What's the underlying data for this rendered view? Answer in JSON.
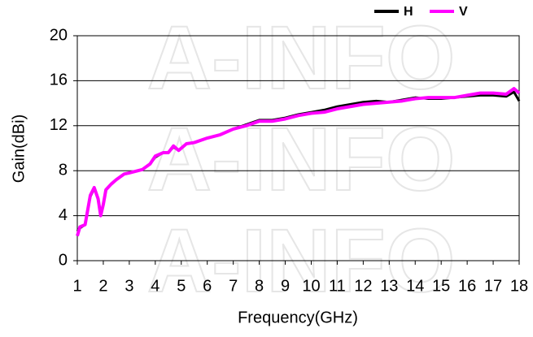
{
  "chart_data": {
    "type": "line",
    "watermark": "A-INFO",
    "x_label": "Frequency(GHz)",
    "y_label": "Gain(dBi)",
    "xlim": [
      1,
      18
    ],
    "xticks": [
      1,
      2,
      3,
      4,
      5,
      6,
      7,
      8,
      9,
      10,
      11,
      12,
      13,
      14,
      15,
      16,
      17,
      18
    ],
    "ylim": [
      0,
      20
    ],
    "yticks": [
      0,
      4,
      8,
      12,
      16,
      20
    ],
    "grid": true,
    "legend": "top-right",
    "x": [
      1,
      1.1,
      1.3,
      1.5,
      1.65,
      1.8,
      1.9,
      2,
      2.1,
      2.3,
      2.5,
      2.8,
      3,
      3.5,
      3.8,
      4,
      4.3,
      4.5,
      4.7,
      4.9,
      5.2,
      5.5,
      6,
      6.5,
      7,
      7.5,
      8,
      8.5,
      9,
      9.5,
      10,
      10.5,
      11,
      11.5,
      12,
      12.5,
      13,
      13.5,
      14,
      14.5,
      15,
      15.5,
      16,
      16.5,
      17,
      17.5,
      17.8,
      18
    ],
    "series": [
      {
        "name": "H",
        "color": "#000000",
        "values": [
          2.6,
          2.9,
          3.2,
          5.7,
          6.4,
          5.5,
          4.0,
          5.0,
          6.3,
          6.8,
          7.2,
          7.7,
          7.8,
          8.1,
          8.6,
          9.2,
          9.6,
          9.6,
          10.1,
          9.8,
          10.4,
          10.5,
          10.9,
          11.2,
          11.7,
          12.1,
          12.5,
          12.5,
          12.7,
          13.0,
          13.2,
          13.4,
          13.7,
          13.9,
          14.1,
          14.2,
          14.1,
          14.3,
          14.5,
          14.4,
          14.4,
          14.5,
          14.6,
          14.7,
          14.7,
          14.6,
          15.0,
          14.2
        ]
      },
      {
        "name": "V",
        "color": "#ff00ff",
        "values": [
          2.2,
          3.0,
          3.2,
          5.8,
          6.5,
          5.5,
          4.0,
          5.0,
          6.3,
          6.8,
          7.2,
          7.7,
          7.8,
          8.1,
          8.6,
          9.3,
          9.6,
          9.6,
          10.2,
          9.8,
          10.4,
          10.5,
          10.9,
          11.2,
          11.7,
          12.0,
          12.4,
          12.4,
          12.6,
          12.9,
          13.1,
          13.2,
          13.5,
          13.7,
          13.9,
          14.0,
          14.1,
          14.2,
          14.4,
          14.5,
          14.5,
          14.5,
          14.7,
          14.9,
          14.9,
          14.8,
          15.3,
          14.9
        ]
      }
    ]
  }
}
